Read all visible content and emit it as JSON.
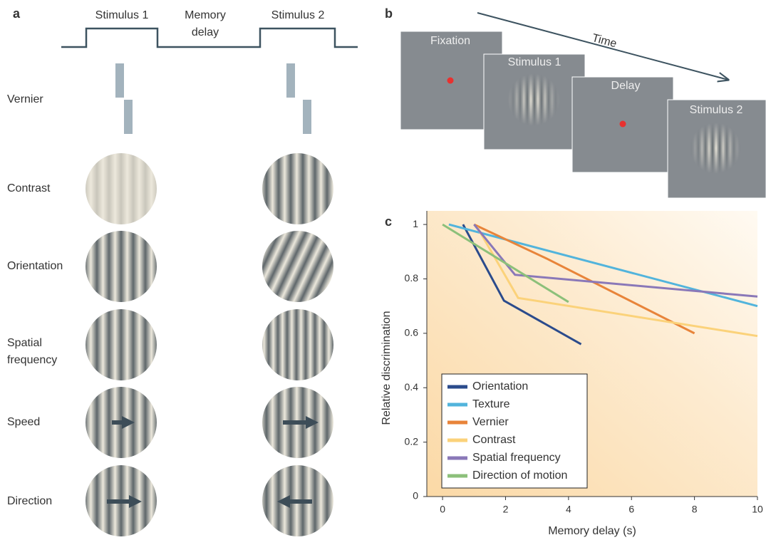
{
  "panel_a": {
    "label": "a",
    "timeline": [
      "Stimulus 1",
      "Memory delay",
      "Stimulus 2"
    ],
    "rows": [
      "Vernier",
      "Contrast",
      "Orientation",
      "Spatial frequency",
      "Speed",
      "Direction"
    ]
  },
  "panel_b": {
    "label": "b",
    "time": "Time",
    "frames": [
      "Fixation",
      "Stimulus 1",
      "Delay",
      "Stimulus 2"
    ]
  },
  "chart_data": {
    "type": "line",
    "panel_label": "c",
    "xlabel": "Memory delay (s)",
    "ylabel": "Relative discrimination",
    "xlim": [
      -0.5,
      10
    ],
    "ylim": [
      0,
      1.05
    ],
    "xticks": [
      0,
      2,
      4,
      6,
      8,
      10
    ],
    "yticks": [
      0,
      0.2,
      0.4,
      0.6,
      0.8,
      1
    ],
    "legend": "lower left",
    "series": [
      {
        "name": "Orientation",
        "color": "#2b4b8c",
        "x": [
          0.65,
          1.95,
          4.4
        ],
        "values": [
          1.0,
          0.72,
          0.56
        ]
      },
      {
        "name": "Texture",
        "color": "#52b4dc",
        "x": [
          0.2,
          10
        ],
        "values": [
          1.0,
          0.7
        ]
      },
      {
        "name": "Vernier",
        "color": "#e8843a",
        "x": [
          1,
          3.3,
          8
        ],
        "values": [
          1.0,
          0.875,
          0.6
        ]
      },
      {
        "name": "Contrast",
        "color": "#fbd27a",
        "x": [
          1.1,
          2.4,
          10
        ],
        "values": [
          0.99,
          0.73,
          0.59
        ]
      },
      {
        "name": "Spatial frequency",
        "color": "#8a78b8",
        "x": [
          1,
          2.3,
          10
        ],
        "values": [
          1.0,
          0.815,
          0.735
        ]
      },
      {
        "name": "Direction of motion",
        "color": "#8cc07a",
        "x": [
          0,
          4
        ],
        "values": [
          1.0,
          0.715
        ]
      }
    ]
  }
}
